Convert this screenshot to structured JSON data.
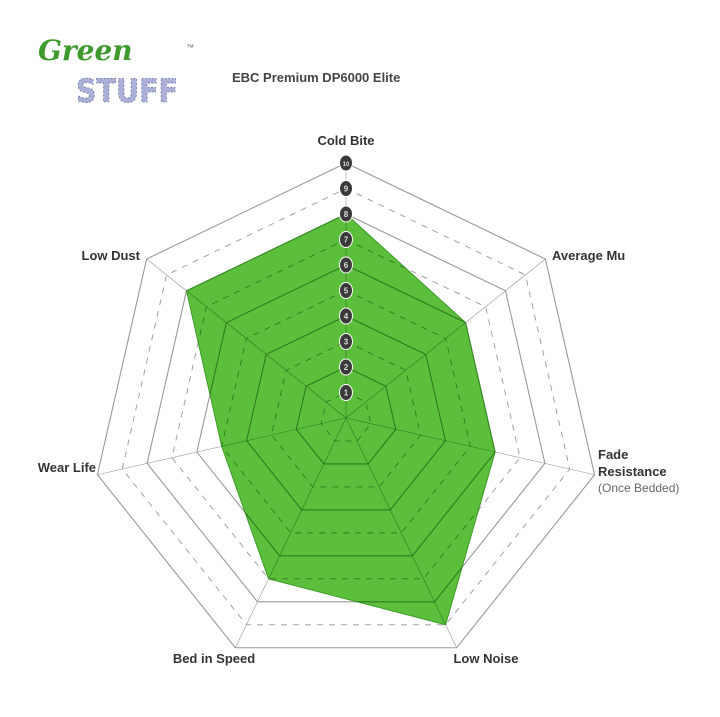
{
  "logo": {
    "line1": "Green",
    "line2": "STUFF",
    "tm": "™",
    "colors": {
      "green": "#3f9a2c",
      "stuff": "#aab0d8"
    }
  },
  "chart_data": {
    "type": "radar",
    "title": "EBC Premium DP6000 Elite",
    "axes": [
      {
        "label": "Cold Bite",
        "sub": ""
      },
      {
        "label": "Average Mu",
        "sub": ""
      },
      {
        "label": "Fade Resistance",
        "sub": "(Once Bedded)"
      },
      {
        "label": "Low Noise",
        "sub": ""
      },
      {
        "label": "Bed in Speed",
        "sub": ""
      },
      {
        "label": "Wear Life",
        "sub": ""
      },
      {
        "label": "Low Dust",
        "sub": ""
      }
    ],
    "values": [
      8,
      6,
      6,
      9,
      7,
      5,
      8
    ],
    "range": [
      0,
      10
    ],
    "tick_labels": [
      "1",
      "2",
      "3",
      "4",
      "5",
      "6",
      "7",
      "8",
      "9",
      "10"
    ],
    "fill_color": "#5cbf3c",
    "grid": "solid on even rings, dashed on odd rings"
  }
}
